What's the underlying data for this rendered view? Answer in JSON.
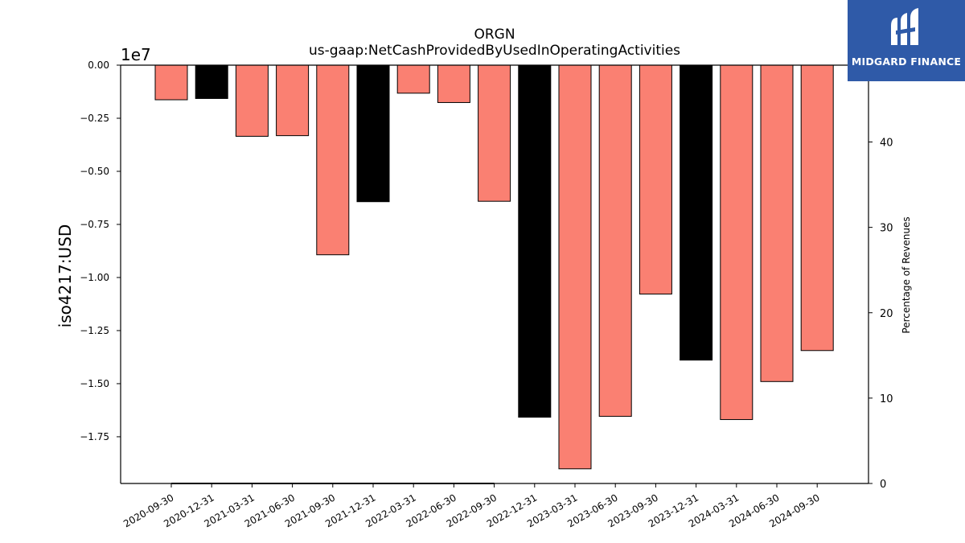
{
  "chart_data": {
    "type": "bar",
    "title": "ORGN",
    "subtitle": "us-gaap:NetCashProvidedByUsedInOperatingActivities",
    "ylabel": "iso4217:USD",
    "y_offset_label": "1e7",
    "y2label": "Percentage of Revenues",
    "ylim": [
      -1.97,
      0
    ],
    "y_ticks": [
      "0.00",
      "−0.25",
      "−0.50",
      "−0.75",
      "−1.00",
      "−1.25",
      "−1.50",
      "−1.75"
    ],
    "y_tick_values": [
      0,
      -0.25,
      -0.5,
      -0.75,
      -1.0,
      -1.25,
      -1.5,
      -1.75
    ],
    "y2lim": [
      0,
      49
    ],
    "y2_ticks": [
      "0",
      "10",
      "20",
      "30",
      "40"
    ],
    "y2_tick_values": [
      0,
      10,
      20,
      30,
      40
    ],
    "categories": [
      "2020-09-30",
      "2020-12-31",
      "2021-03-31",
      "2021-06-30",
      "2021-09-30",
      "2021-12-31",
      "2022-03-31",
      "2022-06-30",
      "2022-09-30",
      "2022-12-31",
      "2023-03-31",
      "2023-06-30",
      "2023-09-30",
      "2023-12-31",
      "2024-03-31",
      "2024-06-30",
      "2024-09-30"
    ],
    "values": [
      -0.163,
      -0.157,
      -0.335,
      -0.332,
      -0.893,
      -0.643,
      -0.132,
      -0.176,
      -0.641,
      -1.658,
      -1.901,
      -1.654,
      -1.078,
      -1.389,
      -1.669,
      -1.49,
      -1.344
    ],
    "bar_colors": [
      "#fa8072",
      "#000000",
      "#fa8072",
      "#fa8072",
      "#fa8072",
      "#000000",
      "#fa8072",
      "#fa8072",
      "#fa8072",
      "#000000",
      "#fa8072",
      "#fa8072",
      "#fa8072",
      "#000000",
      "#fa8072",
      "#fa8072",
      "#fa8072"
    ],
    "percentage_series": [
      0,
      0,
      0,
      0,
      0,
      0,
      0,
      0,
      0
    ],
    "percentage_color": "#000000",
    "grid": false
  },
  "logo": {
    "text": "MIDGARD FINANCE",
    "background": "#2f5aa8"
  }
}
